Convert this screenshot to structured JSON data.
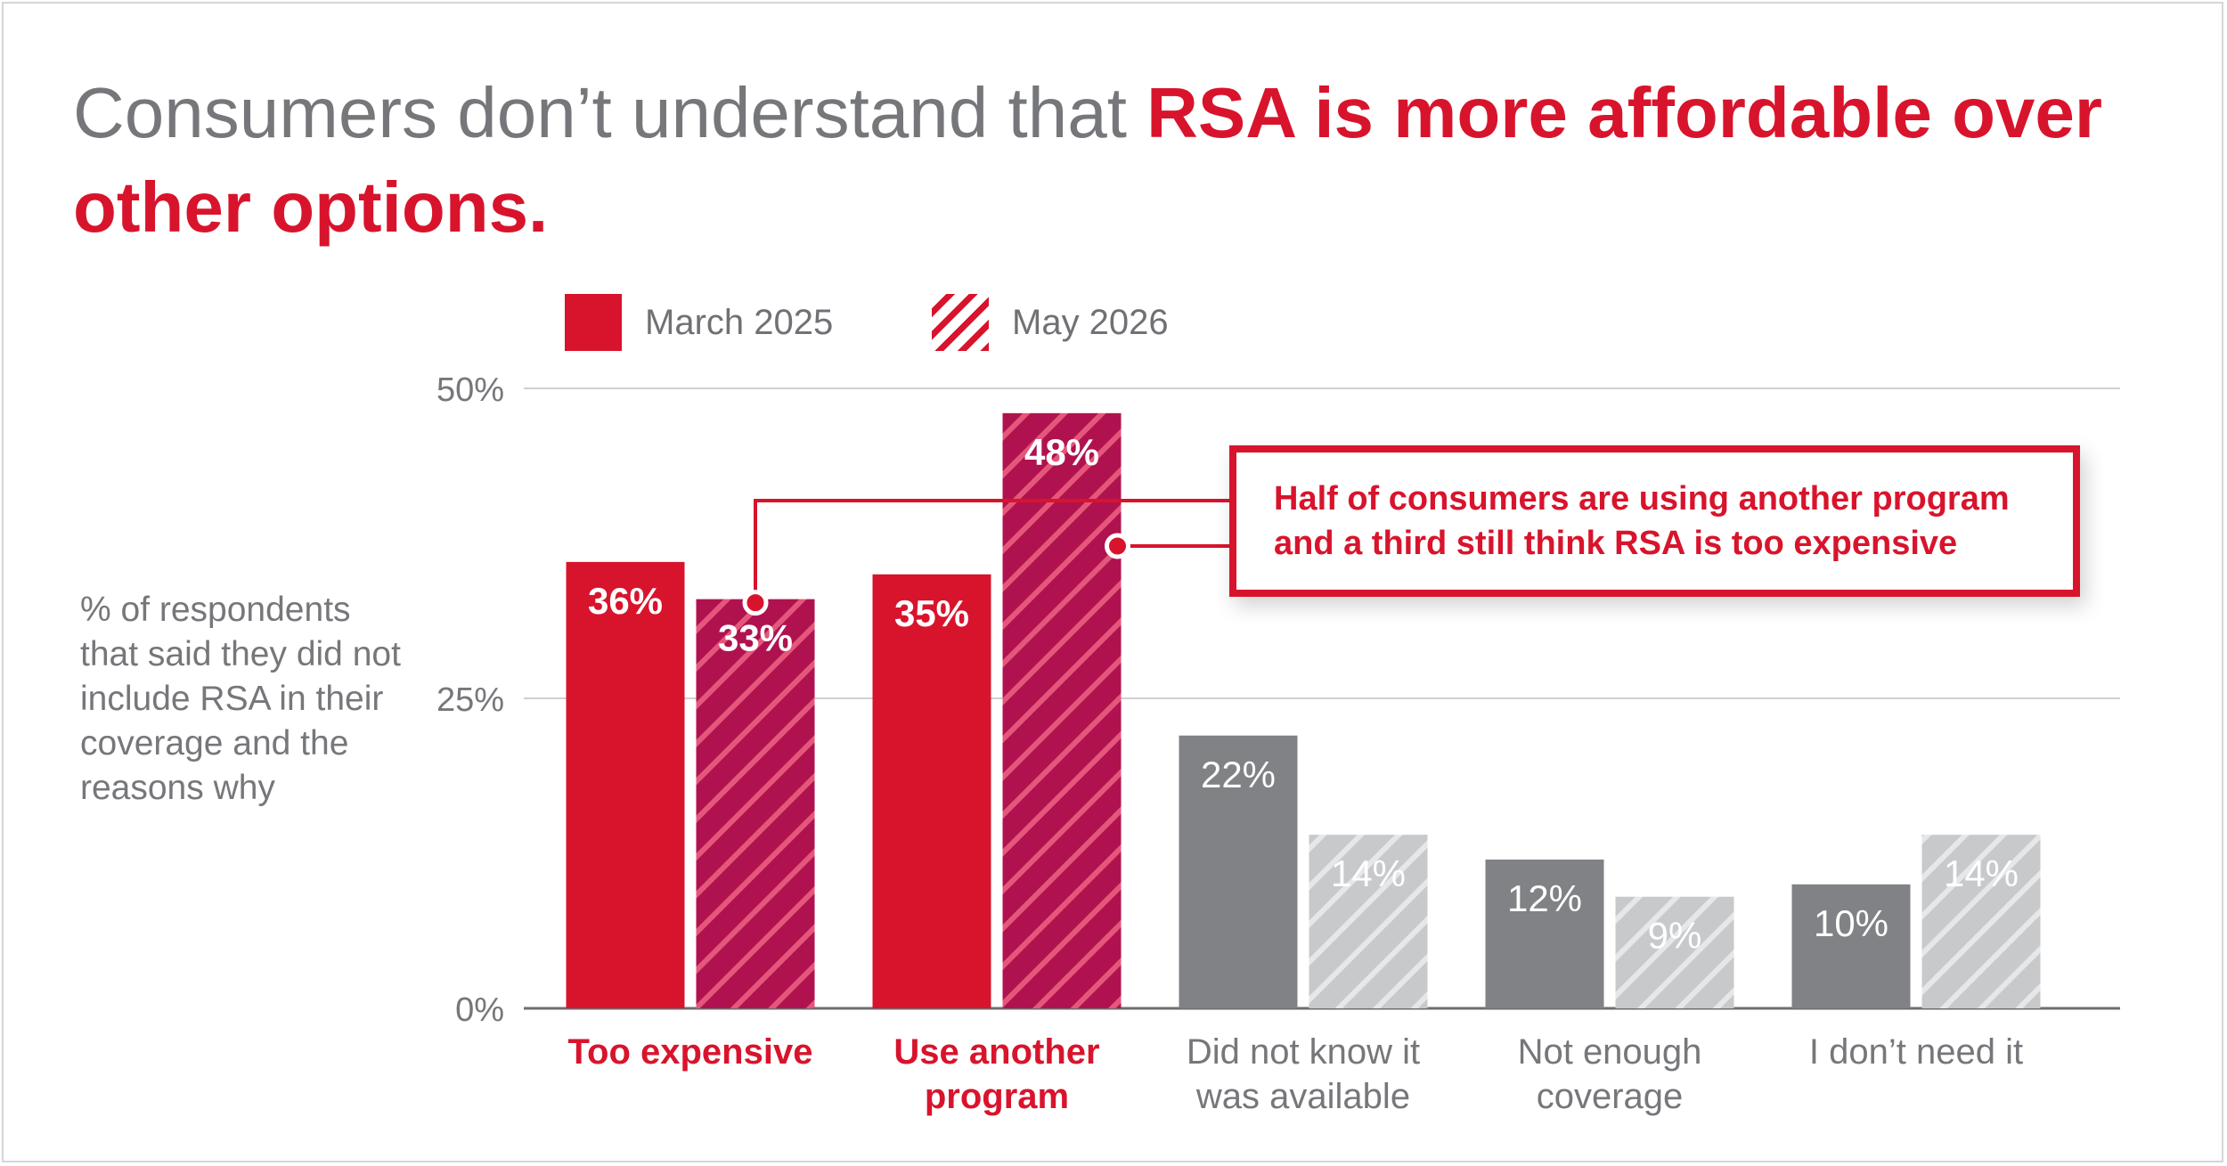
{
  "title": {
    "prefix": "Consumers don’t understand that ",
    "highlight": "RSA is more affordable over other options."
  },
  "legend": {
    "items": [
      {
        "label": "March 2025",
        "style": "solid"
      },
      {
        "label": "May 2026",
        "style": "hatched"
      }
    ]
  },
  "y_axis_caption": "% of respondents that said they did not include RSA in their coverage and the reasons why",
  "callout": {
    "line1": "Half of consumers are using another program",
    "line2": "and a third still think RSA is too expensive"
  },
  "colors": {
    "accent_red": "#d8142c",
    "dark_red_hatch": "#b0124f",
    "gray_solid": "#808285",
    "gray_hatch": "#c8c9cb",
    "text_gray": "#75777a"
  },
  "chart_data": {
    "type": "bar",
    "categories": [
      "Too expensive",
      "Use another program",
      "Did not know it was available",
      "Not enough coverage",
      "I don’t need it"
    ],
    "category_lines": [
      [
        "Too expensive"
      ],
      [
        "Use another",
        "program"
      ],
      [
        "Did not know it",
        "was available"
      ],
      [
        "Not enough",
        "coverage"
      ],
      [
        "I don’t need it"
      ]
    ],
    "highlighted_categories": [
      0,
      1
    ],
    "series": [
      {
        "name": "March 2025",
        "values": [
          36,
          35,
          22,
          12,
          10
        ]
      },
      {
        "name": "May 2026",
        "values": [
          33,
          48,
          14,
          9,
          14
        ]
      }
    ],
    "data_labels": [
      [
        "36%",
        "35%",
        "22%",
        "12%",
        "10%"
      ],
      [
        "33%",
        "48%",
        "14%",
        "9%",
        "14%"
      ]
    ],
    "yticks": [
      0,
      25,
      50
    ],
    "ytick_labels": [
      "0%",
      "25%",
      "50%"
    ],
    "ylim": [
      0,
      50
    ],
    "grid": true,
    "legend_position": "top"
  }
}
